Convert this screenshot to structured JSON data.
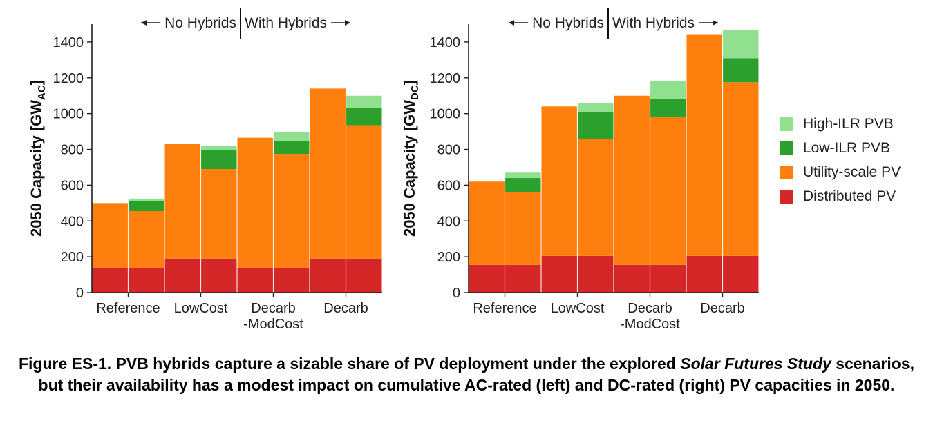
{
  "chart_data": [
    {
      "type": "bar",
      "stacked": true,
      "title": "",
      "ylabel_main": "2050 Capacity [GW",
      "ylabel_sub": "AC",
      "ylabel_end": "]",
      "ylim": [
        0,
        1500
      ],
      "yticks": [
        0,
        200,
        400,
        600,
        800,
        1000,
        1200,
        1400
      ],
      "grid": false,
      "header_left": "No Hybrids",
      "header_right": "With Hybrids",
      "categories": [
        "Reference",
        "LowCost",
        "Decarb\n-ModCost",
        "Decarb"
      ],
      "groups": [
        {
          "no_hybrids": {
            "Distributed PV": 140,
            "Utility-scale PV": 360
          },
          "with_hybrids": {
            "Distributed PV": 140,
            "Utility-scale PV": 315,
            "Low-ILR PVB": 55,
            "High-ILR PVB": 15
          }
        },
        {
          "no_hybrids": {
            "Distributed PV": 190,
            "Utility-scale PV": 640
          },
          "with_hybrids": {
            "Distributed PV": 190,
            "Utility-scale PV": 500,
            "Low-ILR PVB": 105,
            "High-ILR PVB": 25
          }
        },
        {
          "no_hybrids": {
            "Distributed PV": 140,
            "Utility-scale PV": 725
          },
          "with_hybrids": {
            "Distributed PV": 140,
            "Utility-scale PV": 635,
            "Low-ILR PVB": 70,
            "High-ILR PVB": 50
          }
        },
        {
          "no_hybrids": {
            "Distributed PV": 190,
            "Utility-scale PV": 950
          },
          "with_hybrids": {
            "Distributed PV": 190,
            "Utility-scale PV": 745,
            "Low-ILR PVB": 95,
            "High-ILR PVB": 70
          }
        }
      ]
    },
    {
      "type": "bar",
      "stacked": true,
      "title": "",
      "ylabel_main": "2050 Capacity [GW",
      "ylabel_sub": "DC",
      "ylabel_end": "]",
      "ylim": [
        0,
        1500
      ],
      "yticks": [
        0,
        200,
        400,
        600,
        800,
        1000,
        1200,
        1400
      ],
      "grid": false,
      "header_left": "No Hybrids",
      "header_right": "With Hybrids",
      "categories": [
        "Reference",
        "LowCost",
        "Decarb\n-ModCost",
        "Decarb"
      ],
      "groups": [
        {
          "no_hybrids": {
            "Distributed PV": 155,
            "Utility-scale PV": 465
          },
          "with_hybrids": {
            "Distributed PV": 155,
            "Utility-scale PV": 405,
            "Low-ILR PVB": 80,
            "High-ILR PVB": 30
          }
        },
        {
          "no_hybrids": {
            "Distributed PV": 205,
            "Utility-scale PV": 835
          },
          "with_hybrids": {
            "Distributed PV": 205,
            "Utility-scale PV": 655,
            "Low-ILR PVB": 150,
            "High-ILR PVB": 50
          }
        },
        {
          "no_hybrids": {
            "Distributed PV": 155,
            "Utility-scale PV": 945
          },
          "with_hybrids": {
            "Distributed PV": 155,
            "Utility-scale PV": 825,
            "Low-ILR PVB": 100,
            "High-ILR PVB": 100
          }
        },
        {
          "no_hybrids": {
            "Distributed PV": 205,
            "Utility-scale PV": 1235
          },
          "with_hybrids": {
            "Distributed PV": 205,
            "Utility-scale PV": 970,
            "Low-ILR PVB": 135,
            "High-ILR PVB": 155
          }
        }
      ]
    }
  ],
  "legend": [
    {
      "label": "High-ILR PVB",
      "color": "#90e090"
    },
    {
      "label": "Low-ILR PVB",
      "color": "#2ca02c"
    },
    {
      "label": "Utility-scale PV",
      "color": "#ff7f0e"
    },
    {
      "label": "Distributed PV",
      "color": "#d62728"
    }
  ],
  "series_order": [
    "Distributed PV",
    "Utility-scale PV",
    "Low-ILR PVB",
    "High-ILR PVB"
  ],
  "colors": {
    "Distributed PV": "#d62728",
    "Utility-scale PV": "#ff7f0e",
    "Low-ILR PVB": "#2ca02c",
    "High-ILR PVB": "#90e090"
  },
  "caption": {
    "part1": "Figure ES-1. PVB hybrids capture a sizable share of PV deployment under the explored ",
    "italic": "Solar Futures Study",
    "part2": " scenarios, but their availability has a modest impact on cumulative AC-rated (left) and DC-rated (right) PV capacities in 2050."
  }
}
